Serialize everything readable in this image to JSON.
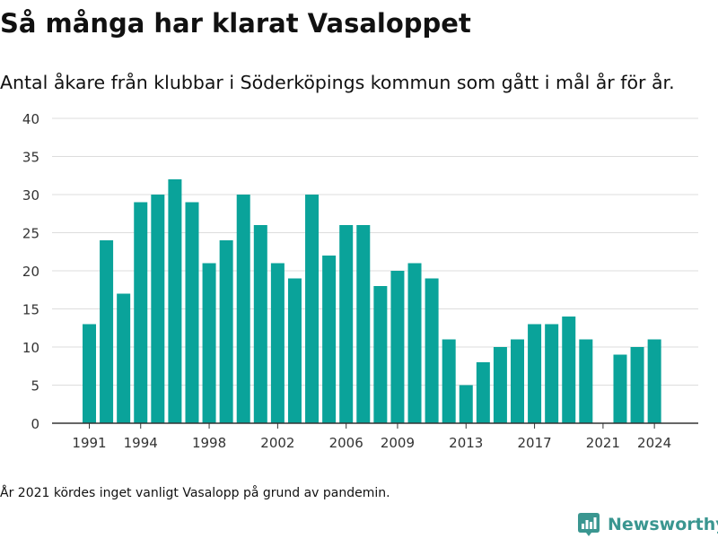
{
  "title": "Så många har klarat Vasaloppet",
  "subtitle": "Antal åkare från klubbar i Söderköpings kommun som gått i mål år för år.",
  "footnote": "År 2021 kördes inget vanligt Vasalopp på grund av pandemin.",
  "brand": {
    "name": "Newsworthy",
    "color": "#3a9690",
    "icon": "bar-chart-badge-icon"
  },
  "colors": {
    "bar": "#0aa39a",
    "grid": "#dddddd",
    "axis": "#333333",
    "text": "#333333"
  },
  "chart_data": {
    "type": "bar",
    "title": "Så många har klarat Vasaloppet",
    "subtitle": "Antal åkare från klubbar i Söderköpings kommun som gått i mål år för år.",
    "xlabel": "",
    "ylabel": "",
    "x": [
      1991,
      1992,
      1993,
      1994,
      1995,
      1996,
      1997,
      1998,
      1999,
      2000,
      2001,
      2002,
      2003,
      2004,
      2005,
      2006,
      2007,
      2008,
      2009,
      2010,
      2011,
      2012,
      2013,
      2014,
      2015,
      2016,
      2017,
      2018,
      2019,
      2020,
      2021,
      2022,
      2023,
      2024
    ],
    "values": [
      13,
      24,
      17,
      29,
      30,
      32,
      29,
      21,
      24,
      30,
      26,
      21,
      19,
      30,
      22,
      26,
      26,
      18,
      20,
      21,
      19,
      11,
      5,
      8,
      10,
      11,
      13,
      13,
      14,
      11,
      null,
      9,
      10,
      11
    ],
    "xticks": [
      1991,
      1994,
      1998,
      2002,
      2006,
      2009,
      2013,
      2017,
      2021,
      2024
    ],
    "yticks": [
      0,
      5,
      10,
      15,
      20,
      25,
      30,
      35,
      40
    ],
    "ylim": [
      0,
      40
    ],
    "grid": true,
    "legend": "none"
  }
}
